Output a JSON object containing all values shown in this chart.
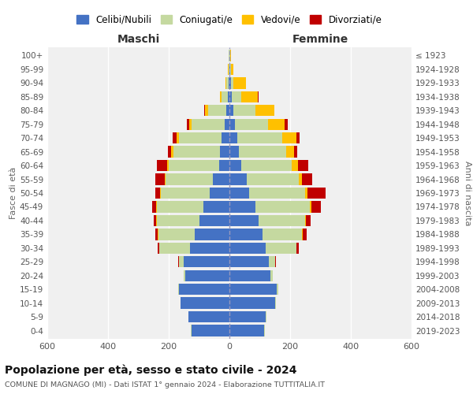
{
  "age_groups": [
    "0-4",
    "5-9",
    "10-14",
    "15-19",
    "20-24",
    "25-29",
    "30-34",
    "35-39",
    "40-44",
    "45-49",
    "50-54",
    "55-59",
    "60-64",
    "65-69",
    "70-74",
    "75-79",
    "80-84",
    "85-89",
    "90-94",
    "95-99",
    "100+"
  ],
  "birth_years": [
    "2019-2023",
    "2014-2018",
    "2009-2013",
    "2004-2008",
    "1999-2003",
    "1994-1998",
    "1989-1993",
    "1984-1988",
    "1979-1983",
    "1974-1978",
    "1969-1973",
    "1964-1968",
    "1959-1963",
    "1954-1958",
    "1949-1953",
    "1944-1948",
    "1939-1943",
    "1934-1938",
    "1929-1933",
    "1924-1928",
    "≤ 1923"
  ],
  "maschi": {
    "celibi": [
      125,
      135,
      160,
      165,
      145,
      150,
      130,
      115,
      100,
      85,
      65,
      55,
      35,
      30,
      25,
      15,
      10,
      5,
      2,
      1,
      1
    ],
    "coniugati": [
      1,
      1,
      2,
      5,
      5,
      15,
      100,
      120,
      140,
      155,
      160,
      155,
      165,
      155,
      140,
      110,
      60,
      20,
      8,
      2,
      1
    ],
    "vedovi": [
      0,
      0,
      0,
      0,
      0,
      1,
      1,
      1,
      1,
      2,
      3,
      4,
      5,
      8,
      10,
      8,
      10,
      5,
      3,
      1,
      0
    ],
    "divorziati": [
      0,
      0,
      0,
      0,
      0,
      2,
      5,
      8,
      8,
      12,
      15,
      30,
      35,
      10,
      12,
      8,
      2,
      1,
      0,
      0,
      0
    ]
  },
  "femmine": {
    "nubili": [
      115,
      120,
      150,
      155,
      135,
      130,
      120,
      110,
      95,
      85,
      65,
      58,
      40,
      32,
      25,
      18,
      12,
      8,
      4,
      2,
      1
    ],
    "coniugate": [
      1,
      1,
      2,
      5,
      8,
      20,
      100,
      130,
      155,
      180,
      185,
      170,
      165,
      155,
      150,
      110,
      75,
      30,
      10,
      2,
      1
    ],
    "vedove": [
      0,
      0,
      0,
      0,
      0,
      1,
      1,
      2,
      2,
      5,
      8,
      12,
      20,
      25,
      45,
      55,
      60,
      55,
      40,
      8,
      2
    ],
    "divorziate": [
      0,
      0,
      0,
      0,
      0,
      2,
      8,
      12,
      15,
      30,
      60,
      32,
      35,
      12,
      12,
      8,
      2,
      2,
      0,
      0,
      0
    ]
  },
  "colors": {
    "celibi": "#4472c4",
    "coniugati": "#c5d9a0",
    "vedovi": "#ffc000",
    "divorziati": "#c00000"
  },
  "xlim": 600,
  "title": "Popolazione per età, sesso e stato civile - 2024",
  "subtitle": "COMUNE DI MAGNAGO (MI) - Dati ISTAT 1° gennaio 2024 - Elaborazione TUTTITALIA.IT",
  "ylabel_left": "Fasce di età",
  "ylabel_right": "Anni di nascita",
  "xlabel_maschi": "Maschi",
  "xlabel_femmine": "Femmine",
  "legend_labels": [
    "Celibi/Nubili",
    "Coniugati/e",
    "Vedovi/e",
    "Divorziati/e"
  ],
  "bg_color": "#f0f0f0"
}
